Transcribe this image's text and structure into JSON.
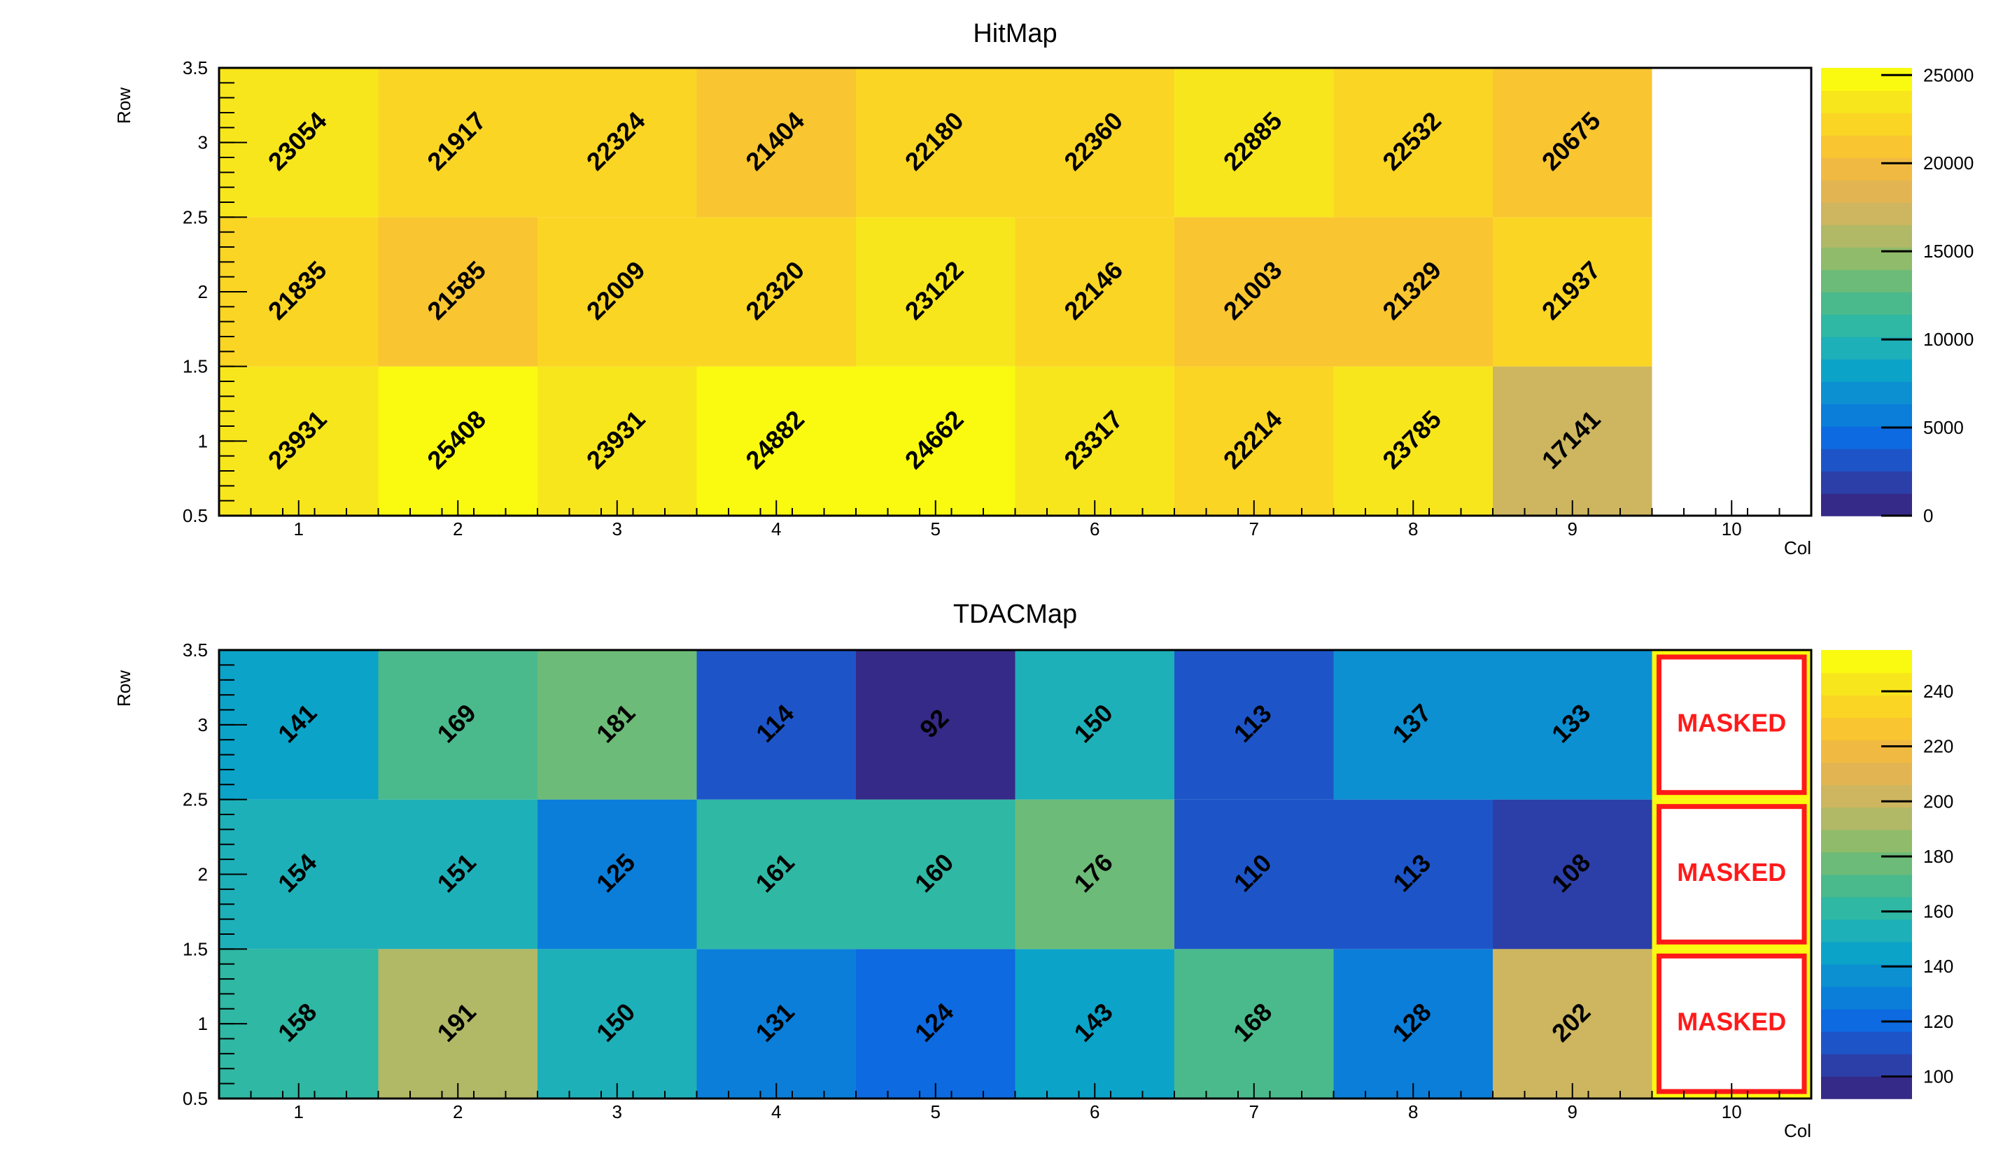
{
  "chart_data": [
    {
      "type": "heatmap",
      "title": "HitMap",
      "xlabel": "Col",
      "ylabel": "Row",
      "xlim": [
        0.5,
        10.5
      ],
      "ylim": [
        0.5,
        3.5
      ],
      "x_ticks": [
        1,
        2,
        3,
        4,
        5,
        6,
        7,
        8,
        9,
        10
      ],
      "y_ticks": [
        0.5,
        1,
        1.5,
        2,
        2.5,
        3,
        3.5
      ],
      "cols": [
        1,
        2,
        3,
        4,
        5,
        6,
        7,
        8,
        9
      ],
      "rows": [
        1,
        2,
        3
      ],
      "values": [
        [
          23931,
          25408,
          23931,
          24882,
          24662,
          23317,
          22214,
          23785,
          17141
        ],
        [
          21835,
          21585,
          22009,
          22320,
          23122,
          22146,
          21003,
          21329,
          21937
        ],
        [
          23054,
          21917,
          22324,
          21404,
          22180,
          22360,
          22885,
          22532,
          20675
        ]
      ],
      "zlim": [
        0,
        25408
      ],
      "colorbar_ticks": [
        0,
        5000,
        10000,
        15000,
        20000,
        25000
      ],
      "masked_cells": []
    },
    {
      "type": "heatmap",
      "title": "TDACMap",
      "xlabel": "Col",
      "ylabel": "Row",
      "xlim": [
        0.5,
        10.5
      ],
      "ylim": [
        0.5,
        3.5
      ],
      "x_ticks": [
        1,
        2,
        3,
        4,
        5,
        6,
        7,
        8,
        9,
        10
      ],
      "y_ticks": [
        0.5,
        1,
        1.5,
        2,
        2.5,
        3,
        3.5
      ],
      "cols": [
        1,
        2,
        3,
        4,
        5,
        6,
        7,
        8,
        9
      ],
      "rows": [
        1,
        2,
        3
      ],
      "values": [
        [
          158,
          191,
          150,
          131,
          124,
          143,
          168,
          128,
          202
        ],
        [
          154,
          151,
          125,
          161,
          160,
          176,
          110,
          113,
          108
        ],
        [
          141,
          169,
          181,
          114,
          92,
          150,
          113,
          137,
          133
        ]
      ],
      "zlim": [
        92,
        255
      ],
      "colorbar_ticks": [
        100,
        120,
        140,
        160,
        180,
        200,
        220,
        240
      ],
      "masked_cells": [
        {
          "col": 10,
          "row": 1,
          "label": "MASKED"
        },
        {
          "col": 10,
          "row": 2,
          "label": "MASKED"
        },
        {
          "col": 10,
          "row": 3,
          "label": "MASKED"
        }
      ]
    }
  ],
  "colors": {
    "palette": [
      "#352a87",
      "#2c3fa8",
      "#1d55c9",
      "#0d6ae0",
      "#0a7ed9",
      "#0c90d1",
      "#0ca3c8",
      "#1eb0b8",
      "#2fb8a3",
      "#4aba8c",
      "#6cbb78",
      "#90bb6a",
      "#b1b866",
      "#cdb65f",
      "#e2b552",
      "#f0ba42",
      "#f9c530",
      "#fbd524",
      "#f8e61d",
      "#f9fa0f"
    ],
    "masked_text": "#ff1a1a",
    "masked_border": "#ff1a1a",
    "masked_fill": "#ffffff",
    "masked_background": "#f9fa0f",
    "axis": "#000000"
  }
}
